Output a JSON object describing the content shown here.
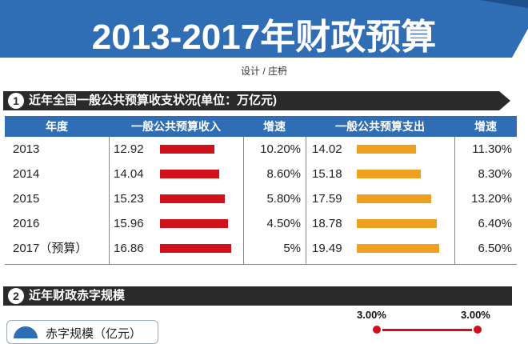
{
  "title": "2013-2017年财政预算",
  "credit": "设计 / 庄枬",
  "section1": {
    "number": "1",
    "heading": "近年全国一般公共预算收支状况(单位：万亿元)"
  },
  "section2": {
    "number": "2",
    "heading": "近年财政赤字规模"
  },
  "table": {
    "headers": {
      "year": "年度",
      "revenue": "一般公共预算收入",
      "revenue_growth": "增速",
      "expenditure": "一般公共预算支出",
      "expenditure_growth": "增速"
    },
    "rows": [
      {
        "year": "2013",
        "revenue": "12.92",
        "revenue_growth": "10.20%",
        "expenditure": "14.02",
        "expenditure_growth": "11.30%"
      },
      {
        "year": "2014",
        "revenue": "14.04",
        "revenue_growth": "8.60%",
        "expenditure": "15.18",
        "expenditure_growth": "8.30%"
      },
      {
        "year": "2015",
        "revenue": "15.23",
        "revenue_growth": "5.80%",
        "expenditure": "17.59",
        "expenditure_growth": "13.20%"
      },
      {
        "year": "2016",
        "revenue": "15.96",
        "revenue_growth": "4.50%",
        "expenditure": "18.78",
        "expenditure_growth": "6.40%"
      },
      {
        "year": "2017（预算）",
        "revenue": "16.86",
        "revenue_growth": "5%",
        "expenditure": "19.49",
        "expenditure_growth": "6.50%"
      }
    ]
  },
  "deficit_legend": "赤字规模（亿元）",
  "deficit_rates": [
    "3.00%",
    "3.00%"
  ],
  "colors": {
    "banner_blue": "#2f6db5",
    "revenue_bar": "#d0101b",
    "expenditure_bar": "#f0a020",
    "section_bar": "#2a2a2a"
  },
  "chart_data": {
    "type": "table",
    "categories": [
      "2013",
      "2014",
      "2015",
      "2016",
      "2017（预算）"
    ],
    "series": [
      {
        "name": "一般公共预算收入",
        "values": [
          12.92,
          14.04,
          15.23,
          15.96,
          16.86
        ]
      },
      {
        "name": "一般公共预算支出",
        "values": [
          14.02,
          15.18,
          17.59,
          18.78,
          19.49
        ]
      }
    ],
    "growth": {
      "revenue": [
        "10.20%",
        "8.60%",
        "5.80%",
        "4.50%",
        "5%"
      ],
      "expenditure": [
        "11.30%",
        "8.30%",
        "13.20%",
        "6.40%",
        "6.50%"
      ]
    }
  }
}
